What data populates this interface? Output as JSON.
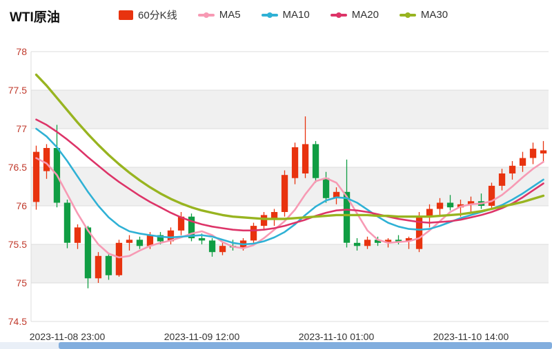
{
  "header": {
    "title": "WTI原油",
    "legend": {
      "items": [
        {
          "label": "60分K线",
          "type": "rect",
          "color": "#e8330f"
        },
        {
          "label": "MA5",
          "type": "line",
          "color": "#f79ab4"
        },
        {
          "label": "MA10",
          "type": "line",
          "color": "#2fb1d5"
        },
        {
          "label": "MA20",
          "type": "line",
          "color": "#dd3468"
        },
        {
          "label": "MA30",
          "type": "line",
          "color": "#98b420"
        }
      ]
    }
  },
  "chart_data": {
    "type": "candlestick",
    "title": "WTI原油",
    "interval": "60分K线",
    "y_axis": {
      "min": 74.5,
      "max": 78,
      "ticks": [
        78,
        77.5,
        77,
        76.5,
        76,
        75.5,
        75,
        74.5
      ],
      "label_color": "#c0392b"
    },
    "x_axis": {
      "tick_labels": [
        "2023-11-08 23:00",
        "2023-11-09 12:00",
        "2023-11-10 01:00",
        "2023-11-10 14:00"
      ],
      "tick_indices": [
        3,
        16,
        29,
        42
      ],
      "label_color": "#333333"
    },
    "colors": {
      "up": "#e8330f",
      "down": "#109d43",
      "band": "#f0f0f0",
      "grid": "#dddddd"
    },
    "legend_position": "top",
    "grid": true,
    "candles": [
      [
        76.05,
        76.78,
        75.95,
        76.7
      ],
      [
        76.45,
        76.8,
        76.35,
        76.75
      ],
      [
        76.75,
        77.05,
        75.98,
        76.04
      ],
      [
        76.04,
        76.08,
        75.45,
        75.52
      ],
      [
        75.52,
        75.76,
        75.44,
        75.72
      ],
      [
        75.72,
        75.74,
        74.93,
        75.06
      ],
      [
        75.06,
        75.4,
        75.0,
        75.35
      ],
      [
        75.35,
        75.38,
        75.04,
        75.1
      ],
      [
        75.1,
        75.56,
        75.08,
        75.52
      ],
      [
        75.52,
        75.62,
        75.42,
        75.56
      ],
      [
        75.56,
        75.6,
        75.44,
        75.48
      ],
      [
        75.48,
        75.66,
        75.44,
        75.62
      ],
      [
        75.62,
        75.66,
        75.5,
        75.54
      ],
      [
        75.54,
        75.72,
        75.5,
        75.68
      ],
      [
        75.68,
        75.92,
        75.62,
        75.86
      ],
      [
        75.86,
        75.9,
        75.54,
        75.58
      ],
      [
        75.58,
        75.64,
        75.5,
        75.55
      ],
      [
        75.55,
        75.58,
        75.34,
        75.4
      ],
      [
        75.4,
        75.52,
        75.36,
        75.48
      ],
      [
        75.48,
        75.56,
        75.42,
        75.46
      ],
      [
        75.46,
        75.58,
        75.42,
        75.55
      ],
      [
        75.55,
        75.78,
        75.52,
        75.74
      ],
      [
        75.74,
        75.92,
        75.7,
        75.88
      ],
      [
        75.82,
        75.96,
        75.74,
        75.92
      ],
      [
        75.92,
        76.46,
        75.86,
        76.4
      ],
      [
        76.36,
        76.82,
        76.28,
        76.76
      ],
      [
        76.42,
        77.16,
        76.36,
        76.8
      ],
      [
        76.8,
        76.84,
        76.3,
        76.36
      ],
      [
        76.36,
        76.44,
        76.04,
        76.1
      ],
      [
        76.1,
        76.24,
        76.02,
        76.18
      ],
      [
        76.18,
        76.6,
        75.46,
        75.52
      ],
      [
        75.52,
        75.58,
        75.42,
        75.48
      ],
      [
        75.48,
        75.6,
        75.44,
        75.56
      ],
      [
        75.56,
        75.6,
        75.48,
        75.52
      ],
      [
        75.52,
        75.58,
        75.46,
        75.56
      ],
      [
        75.56,
        75.62,
        75.5,
        75.54
      ],
      [
        75.54,
        75.6,
        75.44,
        75.58
      ],
      [
        75.44,
        75.92,
        75.4,
        75.86
      ],
      [
        75.86,
        76.02,
        75.72,
        75.96
      ],
      [
        75.96,
        76.1,
        75.88,
        76.04
      ],
      [
        76.04,
        76.14,
        75.94,
        75.98
      ],
      [
        75.98,
        76.08,
        75.86,
        76.02
      ],
      [
        76.02,
        76.12,
        75.92,
        76.06
      ],
      [
        76.06,
        76.16,
        75.96,
        76.0
      ],
      [
        76.0,
        76.3,
        75.96,
        76.26
      ],
      [
        76.26,
        76.48,
        76.2,
        76.42
      ],
      [
        76.42,
        76.58,
        76.34,
        76.52
      ],
      [
        76.52,
        76.7,
        76.44,
        76.62
      ],
      [
        76.62,
        76.82,
        76.54,
        76.74
      ],
      [
        76.68,
        76.84,
        76.56,
        76.72
      ]
    ],
    "series": [
      {
        "name": "MA5",
        "color": "#f79ab4",
        "width": 2.6,
        "values": [
          76.62,
          76.55,
          76.4,
          76.15,
          75.9,
          75.68,
          75.5,
          75.38,
          75.33,
          75.35,
          75.42,
          75.48,
          75.52,
          75.55,
          75.59,
          75.64,
          75.67,
          75.62,
          75.53,
          75.47,
          75.45,
          75.49,
          75.58,
          75.69,
          75.8,
          75.95,
          76.15,
          76.32,
          76.36,
          76.3,
          76.12,
          75.9,
          75.68,
          75.56,
          75.52,
          75.53,
          75.54,
          75.58,
          75.68,
          75.8,
          75.92,
          75.99,
          76.02,
          76.03,
          76.06,
          76.14,
          76.25,
          76.37,
          76.48,
          76.57
        ]
      },
      {
        "name": "MA10",
        "color": "#2fb1d5",
        "width": 2.6,
        "values": [
          77.0,
          76.9,
          76.76,
          76.58,
          76.38,
          76.18,
          76.0,
          75.85,
          75.74,
          75.67,
          75.64,
          75.62,
          75.6,
          75.59,
          75.6,
          75.61,
          75.62,
          75.6,
          75.56,
          75.52,
          75.5,
          75.51,
          75.54,
          75.59,
          75.66,
          75.76,
          75.88,
          75.99,
          76.07,
          76.11,
          76.1,
          76.04,
          75.95,
          75.86,
          75.78,
          75.73,
          75.7,
          75.69,
          75.7,
          75.74,
          75.79,
          75.84,
          75.88,
          75.92,
          75.96,
          76.01,
          76.08,
          76.16,
          76.25,
          76.34
        ]
      },
      {
        "name": "MA20",
        "color": "#dd3468",
        "width": 2.6,
        "values": [
          77.12,
          77.05,
          76.96,
          76.86,
          76.75,
          76.63,
          76.52,
          76.41,
          76.31,
          76.22,
          76.13,
          76.05,
          75.98,
          75.91,
          75.85,
          75.8,
          75.76,
          75.73,
          75.71,
          75.69,
          75.68,
          75.68,
          75.69,
          75.71,
          75.74,
          75.78,
          75.82,
          75.87,
          75.91,
          75.94,
          75.95,
          75.94,
          75.92,
          75.89,
          75.86,
          75.83,
          75.81,
          75.79,
          75.78,
          75.79,
          75.8,
          75.82,
          75.85,
          75.88,
          75.92,
          75.97,
          76.03,
          76.11,
          76.2,
          76.29
        ]
      },
      {
        "name": "MA30",
        "color": "#98b420",
        "width": 3.4,
        "values": [
          77.7,
          77.56,
          77.4,
          77.24,
          77.08,
          76.93,
          76.79,
          76.66,
          76.54,
          76.43,
          76.33,
          76.24,
          76.16,
          76.09,
          76.03,
          75.98,
          75.94,
          75.91,
          75.88,
          75.86,
          75.85,
          75.84,
          75.83,
          75.83,
          75.83,
          75.84,
          75.85,
          75.86,
          75.87,
          75.88,
          75.88,
          75.88,
          75.88,
          75.87,
          75.87,
          75.86,
          75.86,
          75.86,
          75.86,
          75.87,
          75.88,
          75.89,
          75.91,
          75.93,
          75.96,
          75.99,
          76.02,
          76.05,
          76.09,
          76.13
        ]
      }
    ]
  },
  "scrollbar": {
    "track_color": "#e9eff7",
    "thumb_color": "#82aede"
  }
}
